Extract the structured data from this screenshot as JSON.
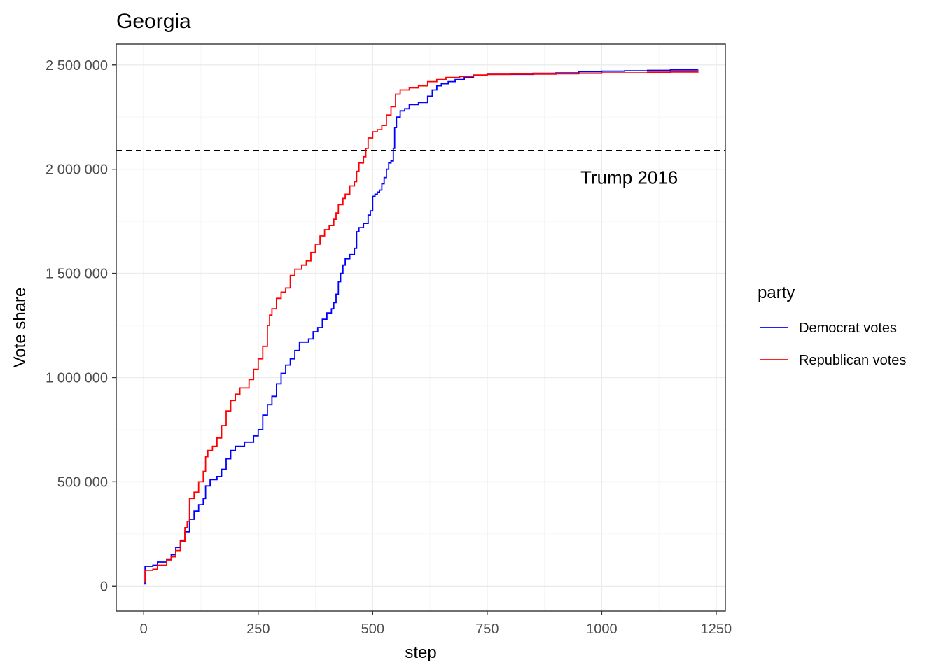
{
  "chart_data": {
    "type": "line",
    "title": "Georgia",
    "xlabel": "step",
    "ylabel": "Vote share",
    "xlim": [
      -60,
      1270
    ],
    "ylim": [
      -120000,
      2600000
    ],
    "x_ticks": [
      0,
      250,
      500,
      750,
      1000,
      1250
    ],
    "x_tick_labels": [
      "0",
      "250",
      "500",
      "750",
      "1000",
      "1250"
    ],
    "y_ticks": [
      0,
      500000,
      1000000,
      1500000,
      2000000,
      2500000
    ],
    "y_tick_labels": [
      "0",
      "500 000",
      "1 000 000",
      "1 500 000",
      "2 000 000",
      "2 500 000"
    ],
    "grid": true,
    "legend": {
      "title": "party",
      "position": "right"
    },
    "reference_line": {
      "y": 2090000,
      "style": "dashed",
      "label": "Trump 2016",
      "label_x": 1060,
      "label_y": 1960000
    },
    "series": [
      {
        "name": "Democrat votes",
        "color": "#0000ff",
        "points": [
          [
            0,
            10000
          ],
          [
            3,
            95000
          ],
          [
            20,
            100000
          ],
          [
            30,
            115000
          ],
          [
            50,
            130000
          ],
          [
            60,
            150000
          ],
          [
            70,
            185000
          ],
          [
            80,
            220000
          ],
          [
            90,
            260000
          ],
          [
            100,
            320000
          ],
          [
            110,
            360000
          ],
          [
            120,
            390000
          ],
          [
            130,
            420000
          ],
          [
            135,
            480000
          ],
          [
            145,
            510000
          ],
          [
            160,
            525000
          ],
          [
            170,
            560000
          ],
          [
            180,
            610000
          ],
          [
            190,
            650000
          ],
          [
            200,
            670000
          ],
          [
            220,
            690000
          ],
          [
            240,
            720000
          ],
          [
            250,
            750000
          ],
          [
            260,
            820000
          ],
          [
            270,
            870000
          ],
          [
            280,
            910000
          ],
          [
            290,
            970000
          ],
          [
            300,
            1020000
          ],
          [
            310,
            1060000
          ],
          [
            320,
            1090000
          ],
          [
            330,
            1130000
          ],
          [
            340,
            1170000
          ],
          [
            360,
            1185000
          ],
          [
            370,
            1220000
          ],
          [
            380,
            1240000
          ],
          [
            390,
            1280000
          ],
          [
            400,
            1310000
          ],
          [
            410,
            1330000
          ],
          [
            415,
            1360000
          ],
          [
            420,
            1400000
          ],
          [
            425,
            1460000
          ],
          [
            430,
            1500000
          ],
          [
            435,
            1540000
          ],
          [
            440,
            1570000
          ],
          [
            450,
            1590000
          ],
          [
            460,
            1620000
          ],
          [
            465,
            1700000
          ],
          [
            470,
            1720000
          ],
          [
            480,
            1740000
          ],
          [
            490,
            1780000
          ],
          [
            495,
            1800000
          ],
          [
            500,
            1870000
          ],
          [
            505,
            1880000
          ],
          [
            510,
            1890000
          ],
          [
            515,
            1900000
          ],
          [
            520,
            1930000
          ],
          [
            525,
            1960000
          ],
          [
            530,
            2000000
          ],
          [
            535,
            2030000
          ],
          [
            540,
            2040000
          ],
          [
            545,
            2100000
          ],
          [
            548,
            2200000
          ],
          [
            552,
            2250000
          ],
          [
            560,
            2280000
          ],
          [
            570,
            2290000
          ],
          [
            580,
            2310000
          ],
          [
            600,
            2320000
          ],
          [
            620,
            2350000
          ],
          [
            630,
            2380000
          ],
          [
            640,
            2400000
          ],
          [
            650,
            2410000
          ],
          [
            665,
            2420000
          ],
          [
            680,
            2430000
          ],
          [
            700,
            2440000
          ],
          [
            720,
            2450000
          ],
          [
            750,
            2455000
          ],
          [
            800,
            2455000
          ],
          [
            850,
            2460000
          ],
          [
            900,
            2462000
          ],
          [
            950,
            2468000
          ],
          [
            1000,
            2470000
          ],
          [
            1050,
            2472000
          ],
          [
            1100,
            2474000
          ],
          [
            1150,
            2476000
          ],
          [
            1210,
            2477000
          ]
        ]
      },
      {
        "name": "Republican votes",
        "color": "#ff0000",
        "points": [
          [
            0,
            20000
          ],
          [
            3,
            75000
          ],
          [
            20,
            80000
          ],
          [
            30,
            100000
          ],
          [
            50,
            125000
          ],
          [
            60,
            140000
          ],
          [
            70,
            170000
          ],
          [
            80,
            215000
          ],
          [
            90,
            280000
          ],
          [
            95,
            310000
          ],
          [
            100,
            420000
          ],
          [
            110,
            450000
          ],
          [
            120,
            500000
          ],
          [
            130,
            550000
          ],
          [
            135,
            620000
          ],
          [
            140,
            650000
          ],
          [
            150,
            670000
          ],
          [
            160,
            710000
          ],
          [
            170,
            770000
          ],
          [
            180,
            840000
          ],
          [
            190,
            890000
          ],
          [
            200,
            920000
          ],
          [
            210,
            950000
          ],
          [
            230,
            990000
          ],
          [
            240,
            1040000
          ],
          [
            250,
            1090000
          ],
          [
            260,
            1150000
          ],
          [
            270,
            1250000
          ],
          [
            275,
            1300000
          ],
          [
            280,
            1330000
          ],
          [
            290,
            1380000
          ],
          [
            300,
            1410000
          ],
          [
            310,
            1430000
          ],
          [
            320,
            1490000
          ],
          [
            330,
            1520000
          ],
          [
            345,
            1540000
          ],
          [
            355,
            1560000
          ],
          [
            365,
            1600000
          ],
          [
            375,
            1640000
          ],
          [
            385,
            1680000
          ],
          [
            395,
            1710000
          ],
          [
            405,
            1730000
          ],
          [
            415,
            1760000
          ],
          [
            420,
            1790000
          ],
          [
            425,
            1830000
          ],
          [
            435,
            1860000
          ],
          [
            440,
            1880000
          ],
          [
            450,
            1920000
          ],
          [
            460,
            1940000
          ],
          [
            465,
            1990000
          ],
          [
            470,
            2030000
          ],
          [
            480,
            2060000
          ],
          [
            485,
            2100000
          ],
          [
            490,
            2150000
          ],
          [
            500,
            2180000
          ],
          [
            510,
            2190000
          ],
          [
            520,
            2210000
          ],
          [
            530,
            2260000
          ],
          [
            540,
            2300000
          ],
          [
            550,
            2360000
          ],
          [
            560,
            2380000
          ],
          [
            580,
            2390000
          ],
          [
            600,
            2400000
          ],
          [
            620,
            2420000
          ],
          [
            640,
            2430000
          ],
          [
            660,
            2440000
          ],
          [
            690,
            2445000
          ],
          [
            720,
            2452000
          ],
          [
            750,
            2455000
          ],
          [
            800,
            2456000
          ],
          [
            850,
            2456000
          ],
          [
            900,
            2458000
          ],
          [
            950,
            2460000
          ],
          [
            1000,
            2462000
          ],
          [
            1050,
            2462000
          ],
          [
            1100,
            2465000
          ],
          [
            1150,
            2466000
          ],
          [
            1210,
            2468000
          ]
        ]
      }
    ]
  }
}
